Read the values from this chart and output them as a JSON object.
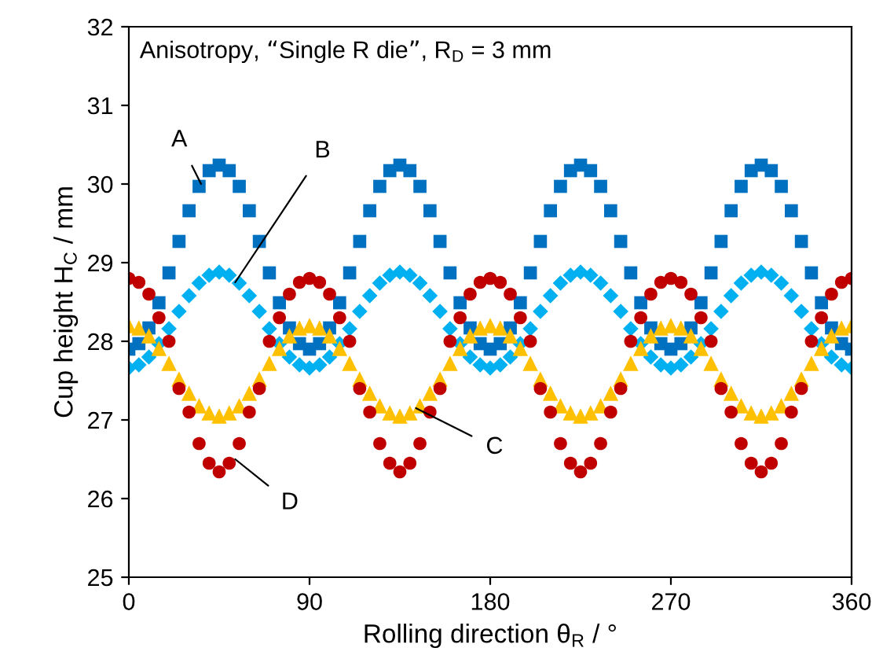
{
  "chart_data": {
    "type": "scatter",
    "title": "Anisotropy, “Single R die”, R$_{D}$ = 3 mm",
    "xlabel": "Rolling direction θ$_{R}$ / °",
    "ylabel": "Cup height H$_{C}$ / mm",
    "x": [
      0,
      5,
      10,
      15,
      20,
      25,
      30,
      35,
      40,
      45,
      50,
      55,
      60,
      65,
      70,
      75,
      80,
      85,
      90,
      95,
      100,
      105,
      110,
      115,
      120,
      125,
      130,
      135,
      140,
      145,
      150,
      155,
      160,
      165,
      170,
      175,
      180,
      185,
      190,
      195,
      200,
      205,
      210,
      215,
      220,
      225,
      230,
      235,
      240,
      245,
      250,
      255,
      260,
      265,
      270,
      275,
      280,
      285,
      290,
      295,
      300,
      305,
      310,
      315,
      320,
      325,
      330,
      335,
      340,
      345,
      350,
      355,
      360
    ],
    "series": [
      {
        "color": "#0070c0",
        "marker": "square",
        "values": [
          27.9,
          27.97,
          28.17,
          28.49,
          28.87,
          29.27,
          29.66,
          29.97,
          30.17,
          30.24,
          30.17,
          29.97,
          29.66,
          29.27,
          28.87,
          28.49,
          28.17,
          27.97,
          27.9,
          27.97,
          28.17,
          28.49,
          28.87,
          29.27,
          29.66,
          29.97,
          30.17,
          30.24,
          30.17,
          29.97,
          29.66,
          29.27,
          28.87,
          28.49,
          28.17,
          27.97,
          27.9,
          27.97,
          28.17,
          28.49,
          28.87,
          29.27,
          29.66,
          29.97,
          30.17,
          30.24,
          30.17,
          29.97,
          29.66,
          29.27,
          28.87,
          28.49,
          28.17,
          27.97,
          27.9,
          27.97,
          28.17,
          28.49,
          28.87,
          29.27,
          29.66,
          29.97,
          30.17,
          30.24,
          30.17,
          29.97,
          29.66,
          29.27,
          28.87,
          28.49,
          28.17,
          27.97,
          27.9
        ]
      },
      {
        "color": "#00b0f0",
        "marker": "diamond",
        "values": [
          27.66,
          27.7,
          27.8,
          27.97,
          28.16,
          28.38,
          28.58,
          28.74,
          28.84,
          28.88,
          28.84,
          28.74,
          28.58,
          28.38,
          28.16,
          27.97,
          27.8,
          27.7,
          27.66,
          27.7,
          27.8,
          27.97,
          28.16,
          28.38,
          28.58,
          28.74,
          28.84,
          28.88,
          28.84,
          28.74,
          28.58,
          28.38,
          28.16,
          27.97,
          27.8,
          27.7,
          27.66,
          27.7,
          27.8,
          27.97,
          28.16,
          28.38,
          28.58,
          28.74,
          28.84,
          28.88,
          28.84,
          28.74,
          28.58,
          28.38,
          28.16,
          27.97,
          27.8,
          27.7,
          27.66,
          27.7,
          27.8,
          27.97,
          28.16,
          28.38,
          28.58,
          28.74,
          28.84,
          28.88,
          28.84,
          28.74,
          28.58,
          28.38,
          28.16,
          27.97,
          27.8,
          27.7,
          27.66
        ]
      },
      {
        "color": "#ffc000",
        "marker": "triangle",
        "values": [
          28.2,
          28.17,
          28.07,
          27.91,
          27.72,
          27.52,
          27.34,
          27.18,
          27.09,
          27.05,
          27.09,
          27.18,
          27.34,
          27.52,
          27.72,
          27.91,
          28.07,
          28.17,
          28.2,
          28.17,
          28.07,
          27.91,
          27.72,
          27.52,
          27.34,
          27.18,
          27.09,
          27.05,
          27.09,
          27.18,
          27.34,
          27.52,
          27.72,
          27.91,
          28.07,
          28.17,
          28.2,
          28.17,
          28.07,
          27.91,
          27.72,
          27.52,
          27.34,
          27.18,
          27.09,
          27.05,
          27.09,
          27.18,
          27.34,
          27.52,
          27.72,
          27.91,
          28.07,
          28.17,
          28.2,
          28.17,
          28.07,
          27.91,
          27.72,
          27.52,
          27.34,
          27.18,
          27.09,
          27.05,
          27.09,
          27.18,
          27.34,
          27.52,
          27.72,
          27.91,
          28.07,
          28.17,
          28.2
        ]
      },
      {
        "color": "#c00000",
        "marker": "circle",
        "values": [
          28.8,
          28.75,
          28.6,
          28.3,
          28.0,
          27.4,
          27.1,
          26.7,
          26.45,
          26.34,
          26.45,
          26.7,
          27.1,
          27.4,
          28.0,
          28.3,
          28.6,
          28.75,
          28.8,
          28.75,
          28.6,
          28.3,
          28.0,
          27.4,
          27.1,
          26.7,
          26.45,
          26.34,
          26.45,
          26.7,
          27.1,
          27.4,
          28.0,
          28.3,
          28.6,
          28.75,
          28.8,
          28.75,
          28.6,
          28.3,
          28.0,
          27.4,
          27.1,
          26.7,
          26.45,
          26.34,
          26.45,
          26.7,
          27.1,
          27.4,
          28.0,
          28.3,
          28.6,
          28.75,
          28.8,
          28.75,
          28.6,
          28.3,
          28.0,
          27.4,
          27.1,
          26.7,
          26.45,
          26.34,
          26.45,
          26.7,
          27.1,
          27.4,
          28.0,
          28.3,
          28.6,
          28.75,
          28.8
        ]
      }
    ],
    "annotations": [
      {
        "text": "A",
        "x": 36,
        "y": 30.0
      },
      {
        "text": "B",
        "x": 53,
        "y": 28.75
      },
      {
        "text": "C",
        "x": 143,
        "y": 27.15
      },
      {
        "text": "D",
        "x": 53,
        "y": 26.5
      }
    ],
    "xlim": [
      0,
      360
    ],
    "xticks": [
      0,
      90,
      180,
      270,
      360
    ],
    "ylim": [
      25,
      32
    ],
    "yticks": [
      25,
      26,
      27,
      28,
      29,
      30,
      31,
      32
    ],
    "grid": false,
    "legend": false
  }
}
